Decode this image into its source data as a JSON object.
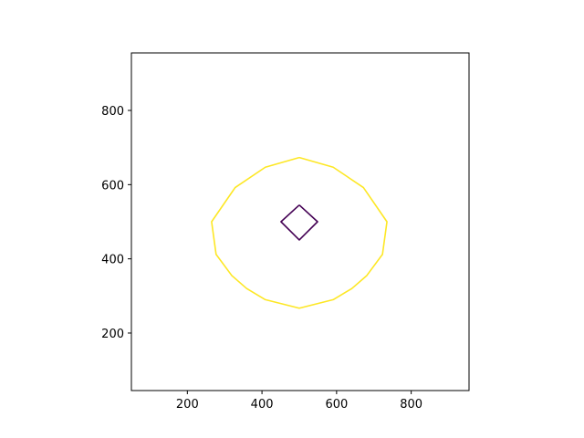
{
  "chart_data": {
    "type": "contour",
    "title": "",
    "xlabel": "",
    "ylabel": "",
    "xlim": [
      50,
      955
    ],
    "ylim": [
      45,
      955
    ],
    "xticks": [
      200,
      400,
      600,
      800
    ],
    "yticks": [
      200,
      400,
      600,
      800
    ],
    "grid": false,
    "series": [
      {
        "color": "#440154",
        "points": [
          [
            500,
            545
          ],
          [
            549,
            500
          ],
          [
            500,
            451
          ],
          [
            451,
            500
          ],
          [
            500,
            545
          ]
        ]
      },
      {
        "color": "#fde725",
        "points": [
          [
            500,
            673
          ],
          [
            591,
            647
          ],
          [
            672,
            592
          ],
          [
            735,
            500
          ],
          [
            723,
            412
          ],
          [
            681,
            355
          ],
          [
            641,
            320
          ],
          [
            591,
            290
          ],
          [
            500,
            267
          ],
          [
            409,
            290
          ],
          [
            359,
            320
          ],
          [
            319,
            355
          ],
          [
            277,
            412
          ],
          [
            265,
            500
          ],
          [
            328,
            592
          ],
          [
            409,
            647
          ],
          [
            500,
            673
          ]
        ]
      }
    ]
  }
}
